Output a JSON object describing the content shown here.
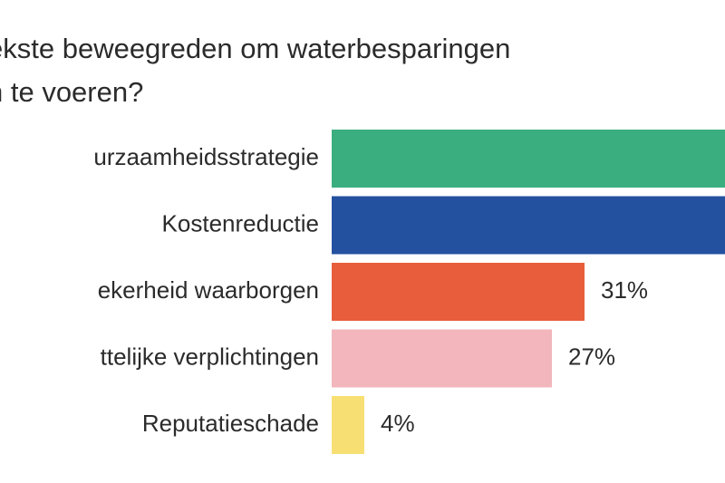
{
  "chart_data": {
    "type": "bar",
    "orientation": "horizontal",
    "title_lines": [
      "ekste beweegreden om waterbesparingen",
      "n te voeren?"
    ],
    "categories": [
      "urzaamheidsstrategie",
      "Kostenreductie",
      "ekerheid waarborgen",
      "ttelijke verplichtingen",
      "Reputatieschade"
    ],
    "values": [
      null,
      null,
      31,
      27,
      4
    ],
    "labels": [
      "",
      "",
      "31%",
      "27%",
      "4%"
    ],
    "colors": [
      "#3aae7e",
      "#2450a0",
      "#e85d3b",
      "#f2b6bc",
      "#f7df74"
    ],
    "value_axis": {
      "max": 45,
      "unit": "%"
    },
    "grid": false,
    "legend": "none"
  }
}
